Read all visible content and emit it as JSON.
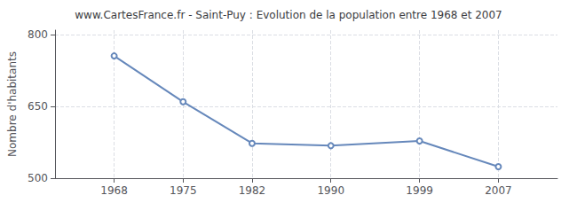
{
  "chart_data": {
    "type": "line",
    "title": "www.CartesFrance.fr - Saint-Puy : Evolution de la population entre 1968 et 2007",
    "ylabel": "Nombre d'habitants",
    "x": [
      1968,
      1975,
      1982,
      1990,
      1999,
      2007
    ],
    "values": [
      756,
      660,
      573,
      568,
      578,
      524
    ],
    "color": "#6688bb",
    "marker": "circle",
    "xlim": [
      1962,
      2013
    ],
    "xticks": [
      1968,
      1975,
      1982,
      1990,
      1999,
      2007
    ],
    "ylim": [
      500,
      810
    ],
    "yticks": [
      500,
      650,
      800
    ],
    "grid": true
  }
}
